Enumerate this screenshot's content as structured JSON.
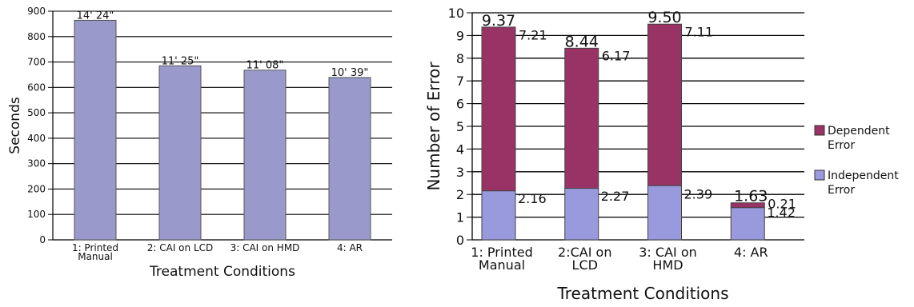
{
  "chart_data": [
    {
      "type": "bar",
      "title": "",
      "xlabel": "Treatment Conditions",
      "ylabel": "Seconds",
      "ylim": [
        0,
        900
      ],
      "yticks": [
        0,
        100,
        200,
        300,
        400,
        500,
        600,
        700,
        800,
        900
      ],
      "grid": true,
      "categories": [
        [
          "1: Printed",
          "Manual"
        ],
        [
          "2: CAI on LCD"
        ],
        [
          "3: CAI on HMD"
        ],
        [
          "4: AR"
        ]
      ],
      "values": [
        864,
        685,
        668,
        639
      ],
      "data_labels": [
        "14' 24\"",
        "11' 25\"",
        "11' 08\"",
        "10' 39\""
      ],
      "colors": {
        "bar": "#9999cc",
        "edge": "#555555"
      }
    },
    {
      "type": "bar",
      "stacked": true,
      "title": "",
      "xlabel": "Treatment Conditions",
      "ylabel": "Number of Error",
      "ylim": [
        0,
        10
      ],
      "yticks": [
        0,
        1,
        2,
        3,
        4,
        5,
        6,
        7,
        8,
        9,
        10
      ],
      "grid": true,
      "legend_position": "right",
      "categories": [
        [
          "1: Printed",
          "Manual"
        ],
        [
          "2:CAI on",
          "LCD"
        ],
        [
          "3: CAI on",
          "HMD"
        ],
        [
          "4: AR"
        ]
      ],
      "series": [
        {
          "name": "Independent Error",
          "values": [
            2.16,
            2.27,
            2.39,
            1.42
          ],
          "color": "#9999dd",
          "labels": [
            "2.16",
            "2.27",
            "2.39",
            "1.42"
          ]
        },
        {
          "name": "Dependent Error",
          "values": [
            7.21,
            6.17,
            7.11,
            0.21
          ],
          "color": "#993366",
          "labels": [
            "7.21",
            "6.17",
            "7.11",
            "0.21"
          ]
        }
      ],
      "totals": [
        "9.37",
        "8.44",
        "9.50",
        "1.63"
      ],
      "legend": [
        {
          "lines": [
            "Dependent",
            "Error"
          ],
          "color": "#993366"
        },
        {
          "lines": [
            "Independent",
            "Error"
          ],
          "color": "#9999dd"
        }
      ]
    }
  ]
}
